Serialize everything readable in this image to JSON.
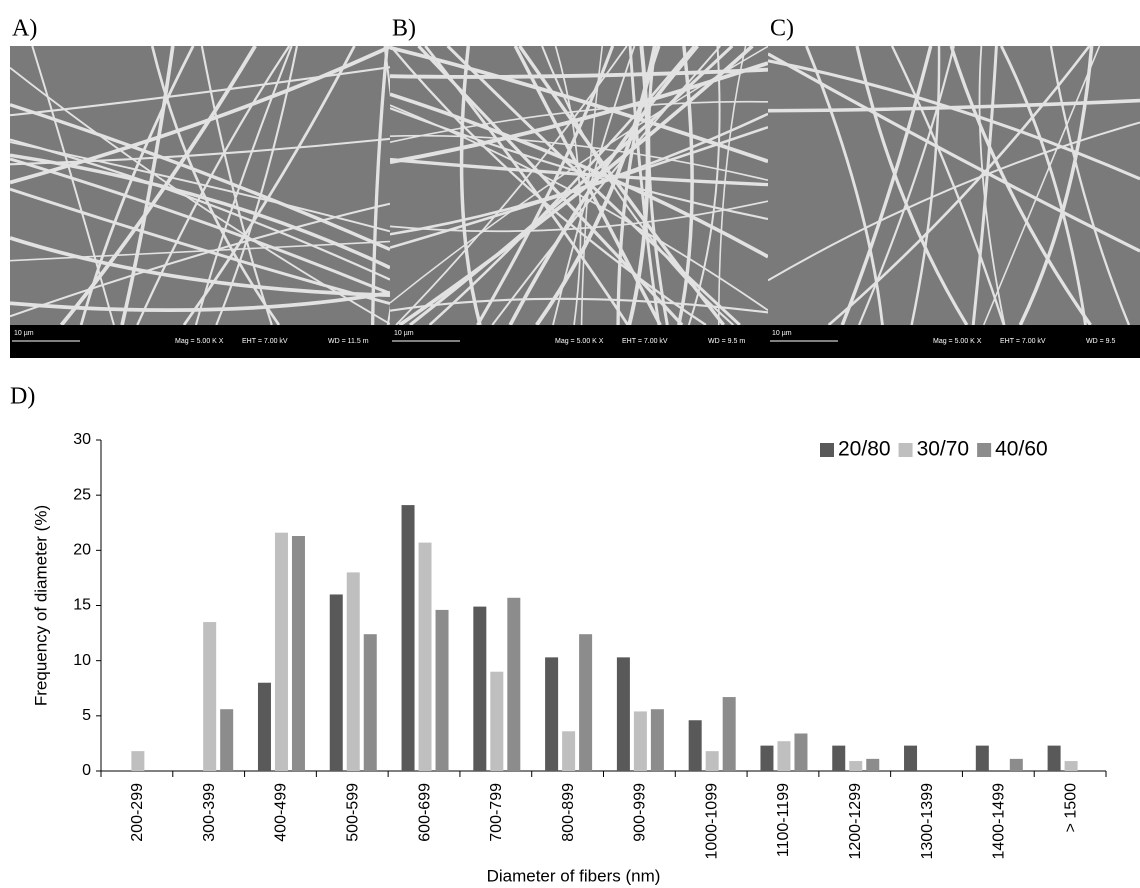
{
  "panels": [
    {
      "label": "A)",
      "scale": "10 µm",
      "mag": "Mag =   5.00 K X",
      "eht": "EHT =  7.00 kV",
      "wd": "WD = 11.5 m"
    },
    {
      "label": "B)",
      "scale": "10 µm",
      "mag": "Mag =   5.00 K X",
      "eht": "EHT =  7.00 kV",
      "wd": "WD =  9.5 m"
    },
    {
      "label": "C)",
      "scale": "10 µm",
      "mag": "Mag =   5.00 K X",
      "eht": "EHT =  7.00 kV",
      "wd": "WD =  9.5"
    }
  ],
  "chart_label": "D)",
  "chart_data": {
    "type": "bar",
    "xlabel": "Diameter of fibers (nm)",
    "ylabel": "Frequency of diameter (%)",
    "categories": [
      "200-299",
      "300-399",
      "400-499",
      "500-599",
      "600-699",
      "700-799",
      "800-899",
      "900-999",
      "1000-1099",
      "1100-1199",
      "1200-1299",
      "1300-1399",
      "1400-1499",
      "> 1500"
    ],
    "series": [
      {
        "name": "20/80",
        "color": "#595959",
        "values": [
          0,
          0,
          8,
          16,
          24.1,
          14.9,
          10.3,
          10.3,
          4.6,
          2.3,
          2.3,
          2.3,
          2.3,
          2.3
        ]
      },
      {
        "name": "30/70",
        "color": "#bfbfbf",
        "values": [
          1.8,
          13.5,
          21.6,
          18,
          20.7,
          9,
          3.6,
          5.4,
          1.8,
          2.7,
          0.9,
          0,
          0,
          0.9
        ]
      },
      {
        "name": "40/60",
        "color": "#8c8c8c",
        "values": [
          0,
          5.6,
          21.3,
          12.4,
          14.6,
          15.7,
          12.4,
          5.6,
          6.7,
          3.4,
          1.1,
          0,
          1.1,
          0
        ]
      }
    ],
    "ylim": [
      0,
      30
    ],
    "yticks": [
      0,
      5,
      10,
      15,
      20,
      25,
      30
    ],
    "grid": false,
    "legend": "upper right"
  }
}
